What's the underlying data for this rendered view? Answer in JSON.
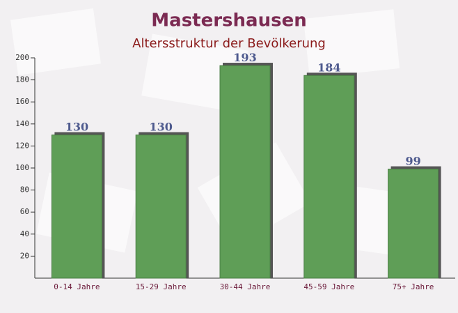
{
  "chart_data": {
    "type": "bar",
    "title": "Mastershausen",
    "subtitle": "Altersstruktur der Bevölkerung",
    "categories": [
      "0-14 Jahre",
      "15-29 Jahre",
      "30-44 Jahre",
      "45-59 Jahre",
      "75+ Jahre"
    ],
    "values": [
      130,
      130,
      193,
      184,
      99
    ],
    "color": "#5f9e57",
    "ylim": [
      0,
      200
    ],
    "yticks": [
      20,
      40,
      60,
      80,
      100,
      120,
      140,
      160,
      180,
      200
    ]
  }
}
